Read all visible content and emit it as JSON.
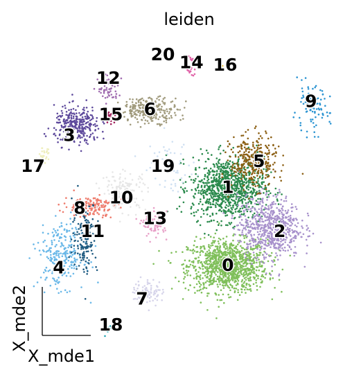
{
  "chart_data": {
    "type": "scatter",
    "title": "leiden",
    "xlabel": "X_mde1",
    "ylabel": "X_mde2",
    "xlim": [
      -3.0,
      3.0
    ],
    "ylim": [
      -3.1,
      2.9
    ],
    "grid": false,
    "legend": "on data",
    "clusters": [
      {
        "name": "0",
        "color": "#7fbf5a",
        "center": [
          0.85,
          -1.55
        ],
        "spread": [
          0.38,
          0.25
        ],
        "n": 1100,
        "label_at": [
          0.85,
          -1.55
        ]
      },
      {
        "name": "1",
        "color": "#2a8a4c",
        "center": [
          0.85,
          -0.05
        ],
        "spread": [
          0.35,
          0.3
        ],
        "n": 950,
        "label_at": [
          0.85,
          -0.05
        ]
      },
      {
        "name": "2",
        "color": "#a892cc",
        "center": [
          1.65,
          -0.8
        ],
        "spread": [
          0.3,
          0.3
        ],
        "n": 650,
        "label_at": [
          1.85,
          -0.9
        ]
      },
      {
        "name": "3",
        "color": "#5e4a9c",
        "center": [
          -2.05,
          1.15
        ],
        "spread": [
          0.22,
          0.18
        ],
        "n": 300,
        "label_at": [
          -2.2,
          0.95
        ]
      },
      {
        "name": "4",
        "color": "#6ab8e8",
        "center": [
          -2.35,
          -1.35
        ],
        "spread": [
          0.22,
          0.3
        ],
        "n": 260,
        "label_at": [
          -2.4,
          -1.6
        ]
      },
      {
        "name": "5",
        "color": "#8b5e12",
        "center": [
          1.35,
          0.45
        ],
        "spread": [
          0.22,
          0.25
        ],
        "n": 320,
        "label_at": [
          1.45,
          0.45
        ]
      },
      {
        "name": "6",
        "color": "#a09a7c",
        "center": [
          -0.65,
          1.45
        ],
        "spread": [
          0.28,
          0.12
        ],
        "n": 260,
        "label_at": [
          -0.65,
          1.45
        ]
      },
      {
        "name": "7",
        "color": "#d6d4ea",
        "center": [
          -0.7,
          -2.05
        ],
        "spread": [
          0.15,
          0.12
        ],
        "n": 90,
        "label_at": [
          -0.8,
          -2.2
        ]
      },
      {
        "name": "8",
        "color": "#ee7b6c",
        "center": [
          -1.8,
          -0.4
        ],
        "spread": [
          0.25,
          0.1
        ],
        "n": 160,
        "label_at": [
          -2.0,
          -0.45
        ]
      },
      {
        "name": "9",
        "color": "#2d95d2",
        "center": [
          2.45,
          1.45
        ],
        "spread": [
          0.18,
          0.22
        ],
        "n": 90,
        "label_at": [
          2.45,
          1.6
        ]
      },
      {
        "name": "10",
        "color": "#e6e6e6",
        "center": [
          -1.15,
          -0.1
        ],
        "spread": [
          0.22,
          0.18
        ],
        "n": 140,
        "label_at": [
          -1.2,
          -0.25
        ]
      },
      {
        "name": "11",
        "color": "#1e5a80",
        "center": [
          -1.9,
          -1.0
        ],
        "spread": [
          0.12,
          0.35
        ],
        "n": 150,
        "label_at": [
          -1.75,
          -0.9
        ]
      },
      {
        "name": "12",
        "color": "#a06cb0",
        "center": [
          -1.45,
          1.85
        ],
        "spread": [
          0.1,
          0.12
        ],
        "n": 60,
        "label_at": [
          -1.45,
          2.05
        ]
      },
      {
        "name": "13",
        "color": "#e8a0c8",
        "center": [
          -0.55,
          -0.75
        ],
        "spread": [
          0.12,
          0.12
        ],
        "n": 90,
        "label_at": [
          -0.55,
          -0.65
        ]
      },
      {
        "name": "14",
        "color": "#e063a8",
        "center": [
          0.15,
          2.3
        ],
        "spread": [
          0.05,
          0.1
        ],
        "n": 30,
        "label_at": [
          0.15,
          2.35
        ]
      },
      {
        "name": "15",
        "color": "#a01d5a",
        "center": [
          -1.4,
          1.35
        ],
        "spread": [
          0.07,
          0.07
        ],
        "n": 40,
        "label_at": [
          -1.4,
          1.35
        ]
      },
      {
        "name": "16",
        "color": "#f0c020",
        "center": [
          0.75,
          2.25
        ],
        "spread": [
          0.02,
          0.02
        ],
        "n": 6,
        "label_at": [
          0.8,
          2.3
        ]
      },
      {
        "name": "17",
        "color": "#eeeebc",
        "center": [
          -2.7,
          0.55
        ],
        "spread": [
          0.06,
          0.08
        ],
        "n": 30,
        "label_at": [
          -2.9,
          0.35
        ]
      },
      {
        "name": "18",
        "color": "#1fa3b3",
        "center": [
          -1.45,
          -2.8
        ],
        "spread": [
          0.03,
          0.05
        ],
        "n": 12,
        "label_at": [
          -1.4,
          -2.7
        ]
      },
      {
        "name": "19",
        "color": "#cfe0f2",
        "center": [
          -0.3,
          0.4
        ],
        "spread": [
          0.25,
          0.25
        ],
        "n": 60,
        "label_at": [
          -0.4,
          0.35
        ]
      },
      {
        "name": "20",
        "color": "#ebebeb",
        "center": [
          -0.4,
          2.45
        ],
        "spread": [
          0.05,
          0.05
        ],
        "n": 4,
        "label_at": [
          -0.4,
          2.5
        ]
      }
    ]
  }
}
